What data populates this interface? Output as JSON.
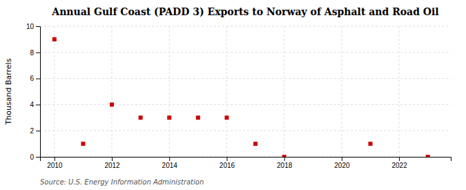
{
  "chart_data": {
    "type": "scatter",
    "title": "Annual Gulf Coast (PADD 3) Exports to Norway of Asphalt and Road Oil",
    "ylabel": "Thousand Barrels",
    "source": "Source: U.S. Energy Information Administration",
    "x": [
      2010,
      2011,
      2012,
      2013,
      2014,
      2015,
      2016,
      2017,
      2018,
      2021,
      2023
    ],
    "values": [
      9,
      1,
      4,
      3,
      3,
      3,
      3,
      1,
      0,
      1,
      0
    ],
    "color": "#cc0000",
    "marker": "square",
    "xlim": [
      2009.5,
      2023.8
    ],
    "ylim": [
      0,
      10
    ],
    "xticks": [
      2010,
      2012,
      2014,
      2016,
      2018,
      2020,
      2022
    ],
    "yticks": [
      0,
      2,
      4,
      6,
      8,
      10
    ],
    "grid": true
  }
}
